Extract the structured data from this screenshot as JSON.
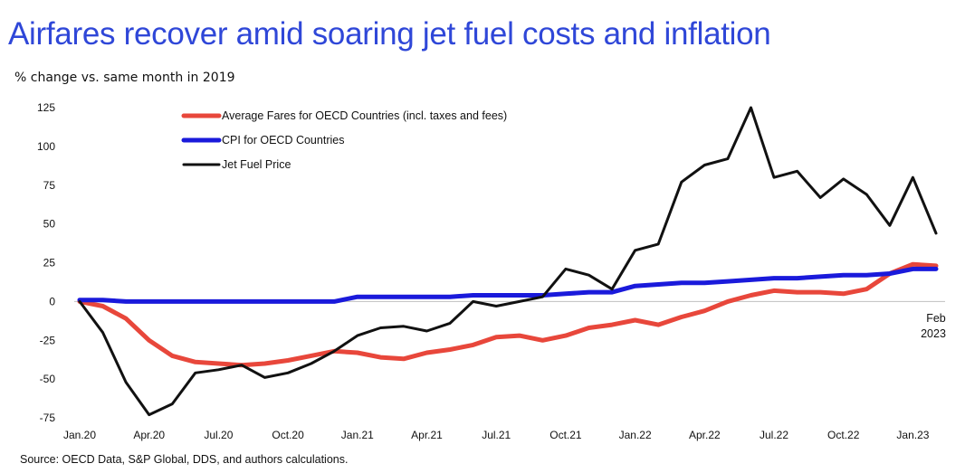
{
  "chart_data": {
    "type": "line",
    "title": "Airfares recover amid soaring jet fuel costs and inflation",
    "subtitle": "% change vs. same month in 2019",
    "source": "Source: OECD Data, S&P Global, DDS, and authors calculations.",
    "xlabel": "",
    "ylabel": "",
    "ylim": [
      -75,
      125
    ],
    "y_ticks": [
      125,
      100,
      75,
      50,
      25,
      0,
      -25,
      -50,
      -75
    ],
    "grid": false,
    "legend_position": "top-left",
    "x_start": "Jan.20",
    "x_tick_labels": [
      {
        "index": 0,
        "label": "Jan.20"
      },
      {
        "index": 3,
        "label": "Apr.20"
      },
      {
        "index": 6,
        "label": "Jul.20"
      },
      {
        "index": 9,
        "label": "Oct.20"
      },
      {
        "index": 12,
        "label": "Jan.21"
      },
      {
        "index": 15,
        "label": "Apr.21"
      },
      {
        "index": 18,
        "label": "Jul.21"
      },
      {
        "index": 21,
        "label": "Oct.21"
      },
      {
        "index": 24,
        "label": "Jan.22"
      },
      {
        "index": 27,
        "label": "Apr.22"
      },
      {
        "index": 30,
        "label": "Jul.22"
      },
      {
        "index": 33,
        "label": "Oct.22"
      },
      {
        "index": 36,
        "label": "Jan.23"
      }
    ],
    "end_annotation": {
      "index": 37,
      "line1": "Feb",
      "line2": "2023"
    },
    "series": [
      {
        "name": "Average Fares for OECD Countries (incl. taxes and fees)",
        "color": "#e8473b",
        "values": [
          0,
          -3,
          -11,
          -25,
          -35,
          -39,
          -40,
          -41,
          -40,
          -38,
          -35,
          -32,
          -33,
          -36,
          -37,
          -33,
          -31,
          -28,
          -23,
          -22,
          -25,
          -22,
          -17,
          -15,
          -12,
          -15,
          -10,
          -6,
          0,
          4,
          7,
          6,
          6,
          5,
          8,
          18,
          24,
          23
        ]
      },
      {
        "name": "CPI for OECD Countries",
        "color": "#1a1adb",
        "values": [
          1,
          1,
          0,
          0,
          0,
          0,
          0,
          0,
          0,
          0,
          0,
          0,
          3,
          3,
          3,
          3,
          3,
          4,
          4,
          4,
          4,
          5,
          6,
          6,
          10,
          11,
          12,
          12,
          13,
          14,
          15,
          15,
          16,
          17,
          17,
          18,
          21,
          21
        ]
      },
      {
        "name": "Jet Fuel Price",
        "color": "#111111",
        "values": [
          0,
          -20,
          -52,
          -73,
          -66,
          -46,
          -44,
          -41,
          -49,
          -46,
          -40,
          -32,
          -22,
          -17,
          -16,
          -19,
          -14,
          0,
          -3,
          0,
          3,
          21,
          17,
          8,
          33,
          37,
          77,
          88,
          92,
          125,
          80,
          84,
          67,
          79,
          69,
          49,
          80,
          44
        ]
      }
    ]
  }
}
